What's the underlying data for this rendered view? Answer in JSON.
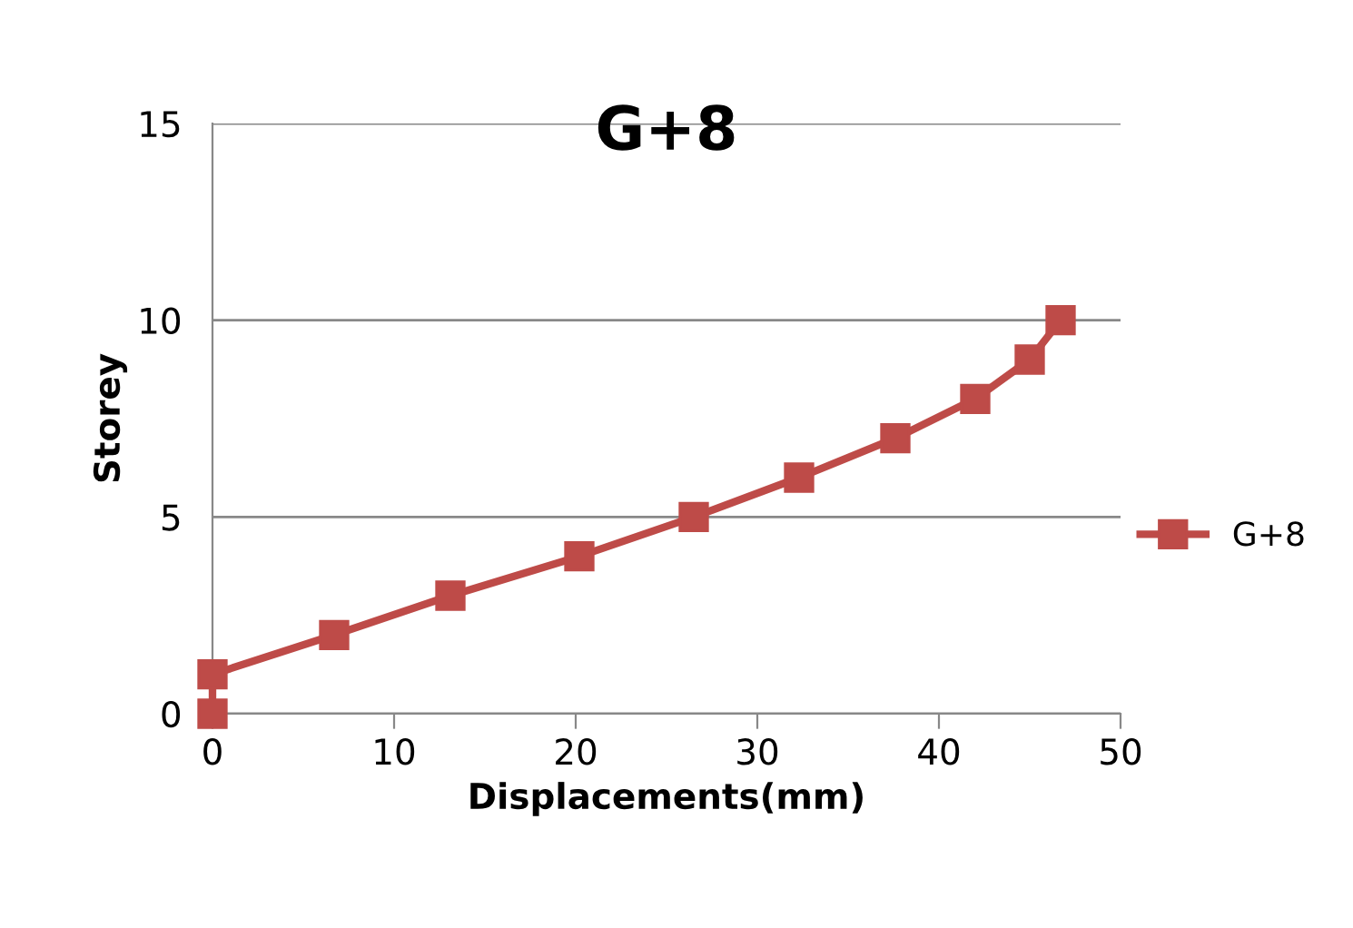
{
  "chart_data": {
    "type": "line",
    "title": "G+8",
    "xlabel": "Displacements(mm)",
    "ylabel": "Storey",
    "x": [
      0,
      0,
      6.7,
      13.1,
      20.2,
      26.5,
      32.3,
      37.6,
      42.0,
      45.0,
      46.7
    ],
    "series": [
      {
        "name": "G+8",
        "color": "#be4b48",
        "values": [
          0,
          1,
          2,
          3,
          4,
          5,
          6,
          7,
          8,
          9,
          10
        ]
      }
    ],
    "xlim": [
      0,
      50
    ],
    "xticks": [
      0,
      10,
      20,
      30,
      40,
      50
    ],
    "ylim": [
      0,
      15
    ],
    "yticks": [
      0,
      5,
      10,
      15
    ],
    "grid": "y",
    "legend": "right",
    "marker": "square",
    "line_style": "solid"
  }
}
